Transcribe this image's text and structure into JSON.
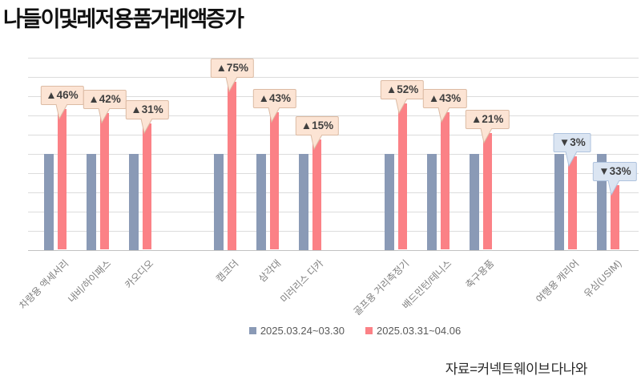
{
  "title": "나들이 및 레저용품 거래액 증가",
  "source": "자료=커넥트웨이브 다나와",
  "colors": {
    "series1": "#8a9ab6",
    "series2": "#fb8186",
    "grid": "#dcdcdc",
    "axis": "#c2c2c2",
    "callout_up_bg": "#fce4d4",
    "callout_up_border": "#dcbba4",
    "callout_down_bg": "#dbe5f2",
    "callout_down_border": "#afc3de",
    "callout_text": "#3f3f3f",
    "xlabel_text": "#7f7f7f"
  },
  "legend": [
    {
      "label": "2025.03.24~03.30",
      "color": "#8a9ab6"
    },
    {
      "label": "2025.03.31~04.06",
      "color": "#fb8186"
    }
  ],
  "chart_data": {
    "type": "bar",
    "title": "나들이 및 레저용품 거래액 증가",
    "categories": [
      "차량용 액세서리",
      "내비/하이패스",
      "카오디오",
      "캠코더",
      "삼각대",
      "미러리스 디카",
      "골프용 거리측정기",
      "배드민턴/테니스",
      "축구용품",
      "여행용 캐리어",
      "유심(USIM)"
    ],
    "series": [
      {
        "name": "2025.03.24~03.30",
        "values": [
          100,
          100,
          100,
          100,
          100,
          100,
          100,
          100,
          100,
          100,
          100
        ]
      },
      {
        "name": "2025.03.31~04.06",
        "values": [
          146,
          142,
          131,
          175,
          143,
          115,
          152,
          143,
          121,
          97,
          67
        ]
      }
    ],
    "change_pct": [
      46,
      42,
      31,
      75,
      43,
      15,
      52,
      43,
      21,
      -3,
      -33
    ],
    "annotations": [
      "▲46%",
      "▲42%",
      "▲31%",
      "▲75%",
      "▲43%",
      "▲15%",
      "▲52%",
      "▲43%",
      "▲21%",
      "▼3%",
      "▼33%"
    ],
    "groups": [
      [
        0,
        1,
        2
      ],
      [
        3,
        4,
        5
      ],
      [
        6,
        7,
        8
      ],
      [
        9,
        10
      ]
    ],
    "ylim": [
      0,
      200
    ],
    "grid_step": 20,
    "grid": true,
    "xlabel": "",
    "ylabel": "",
    "legend_position": "bottom"
  }
}
